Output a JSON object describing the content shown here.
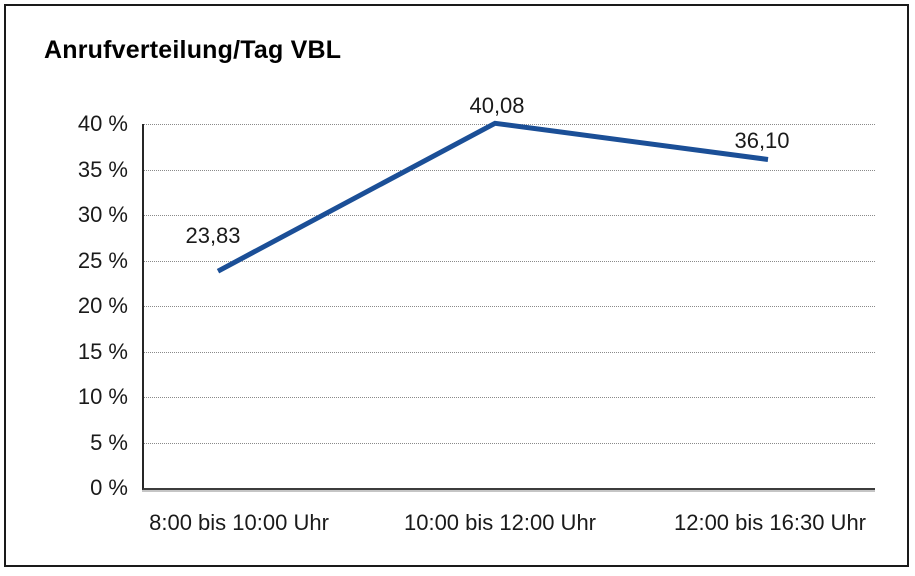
{
  "title": "Anrufverteilung/Tag VBL",
  "chart_data": {
    "type": "line",
    "title": "Anrufverteilung/Tag VBL",
    "categories": [
      "8:00 bis 10:00 Uhr",
      "10:00 bis 12:00 Uhr",
      "12:00 bis 16:30 Uhr"
    ],
    "values": [
      23.83,
      40.08,
      36.1
    ],
    "data_labels": [
      "23,83",
      "40,08",
      "36,10"
    ],
    "xlabel": "",
    "ylabel": "",
    "ylim": [
      0,
      40
    ],
    "ytick_step": 5,
    "yticks": [
      "40 %",
      "35 %",
      "30 %",
      "25 %",
      "20 %",
      "15 %",
      "10 %",
      "5 %",
      "0 %"
    ],
    "grid": "horizontal-dotted",
    "legend": "none"
  },
  "colors": {
    "line": "#1B4F97",
    "grid": "#8a8a8a",
    "axis": "#262626",
    "baseline": "#3c3c3c",
    "frame_border": "#1a1a1a",
    "background": "#ffffff",
    "text": "#1a1a1a"
  }
}
